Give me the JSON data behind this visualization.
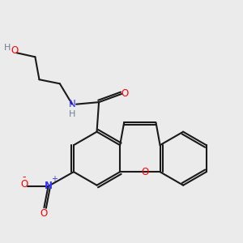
{
  "bg_color": "#ebebeb",
  "atom_colors": {
    "C": "#000000",
    "N": "#3333ff",
    "O": "#ff0000",
    "H": "#708090"
  },
  "bond_color": "#1a1a1a",
  "bond_lw": 1.5
}
